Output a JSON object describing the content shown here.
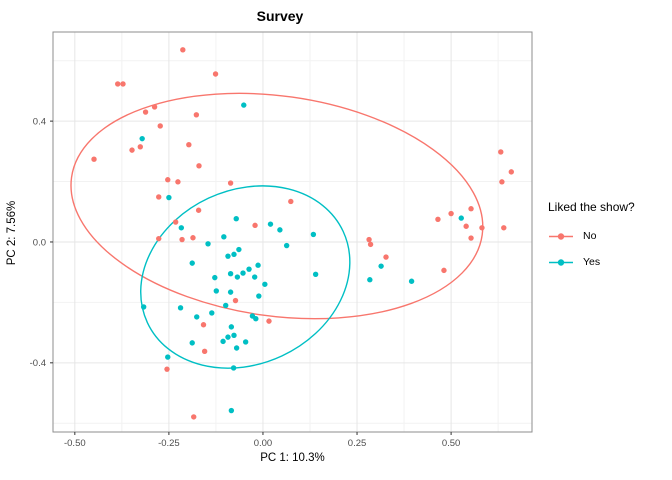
{
  "title": "Survey",
  "axes": {
    "x": {
      "label": "PC 1: 10.3%",
      "tick_labels": [
        "-0.50",
        "-0.25",
        "0.00",
        "0.25",
        "0.50"
      ],
      "tick_values": [
        -0.5,
        -0.25,
        0,
        0.25,
        0.5
      ],
      "minor_values": [
        -0.375,
        -0.125,
        0.125,
        0.375,
        0.625
      ]
    },
    "y": {
      "label": "PC 2: 7.56%",
      "tick_labels": [
        "0.4",
        "0.0",
        "-0.4"
      ],
      "tick_values": [
        0.4,
        0,
        -0.4
      ],
      "minor_values": [
        0.6,
        0.2,
        -0.2,
        -0.6
      ]
    }
  },
  "legend": {
    "title": "Liked the show?",
    "items": [
      {
        "label": "No",
        "color": "#F8766D"
      },
      {
        "label": "Yes",
        "color": "#00BFC4"
      }
    ]
  },
  "style": {
    "panel_background": "#ffffff",
    "panel_border": "#8e8e8e",
    "grid_major": "#e6e6e6",
    "grid_minor": "#f2f2f2",
    "tick_mark": "#333333",
    "tick_text": "#4d4d4d",
    "point_radius": 2.7,
    "ellipse_stroke_width": 1.4
  },
  "chart_data": {
    "type": "scatter",
    "title": "Survey",
    "xlabel": "PC 1: 10.3%",
    "ylabel": "PC 2: 7.56%",
    "xlim": [
      -0.558,
      0.715
    ],
    "ylim": [
      -0.629,
      0.695
    ],
    "grid": true,
    "legend_position": "right",
    "series": [
      {
        "name": "No",
        "color": "#F8766D",
        "points": [
          [
            -0.213,
            0.636
          ],
          [
            -0.126,
            0.556
          ],
          [
            -0.386,
            0.523
          ],
          [
            -0.372,
            0.523
          ],
          [
            -0.312,
            0.43
          ],
          [
            -0.288,
            0.447
          ],
          [
            -0.273,
            0.384
          ],
          [
            -0.177,
            0.421
          ],
          [
            -0.326,
            0.315
          ],
          [
            -0.348,
            0.304
          ],
          [
            -0.449,
            0.274
          ],
          [
            -0.197,
            0.322
          ],
          [
            -0.17,
            0.252
          ],
          [
            0.632,
            0.298
          ],
          [
            -0.253,
            0.206
          ],
          [
            -0.226,
            0.199
          ],
          [
            -0.277,
            0.149
          ],
          [
            -0.171,
            0.105
          ],
          [
            -0.232,
            0.066
          ],
          [
            -0.277,
            0.011
          ],
          [
            -0.215,
            0.008
          ],
          [
            -0.186,
            0.014
          ],
          [
            -0.086,
            0.195
          ],
          [
            0.074,
            0.134
          ],
          [
            -0.021,
            0.055
          ],
          [
            -0.073,
            -0.194
          ],
          [
            0.282,
            0.008
          ],
          [
            0.286,
            -0.008
          ],
          [
            0.66,
            0.232
          ],
          [
            0.635,
            0.199
          ],
          [
            0.553,
            0.11
          ],
          [
            0.5,
            0.094
          ],
          [
            0.465,
            0.075
          ],
          [
            0.54,
            0.052
          ],
          [
            0.582,
            0.047
          ],
          [
            0.64,
            0.047
          ],
          [
            0.553,
            0.013
          ],
          [
            0.327,
            -0.05
          ],
          [
            0.481,
            -0.094
          ],
          [
            -0.158,
            -0.274
          ],
          [
            -0.155,
            -0.362
          ],
          [
            -0.255,
            -0.421
          ],
          [
            -0.184,
            -0.579
          ],
          [
            0.016,
            -0.262
          ]
        ]
      },
      {
        "name": "Yes",
        "color": "#00BFC4",
        "points": [
          [
            -0.321,
            0.342
          ],
          [
            -0.051,
            0.453
          ],
          [
            -0.25,
            0.147
          ],
          [
            -0.217,
            0.047
          ],
          [
            -0.146,
            -0.006
          ],
          [
            -0.188,
            -0.07
          ],
          [
            -0.128,
            -0.118
          ],
          [
            -0.071,
            0.077
          ],
          [
            0.02,
            0.059
          ],
          [
            0.045,
            0.04
          ],
          [
            -0.104,
            0.017
          ],
          [
            0.134,
            0.025
          ],
          [
            0.063,
            -0.012
          ],
          [
            -0.093,
            -0.047
          ],
          [
            -0.077,
            -0.041
          ],
          [
            -0.064,
            -0.025
          ],
          [
            -0.037,
            -0.09
          ],
          [
            -0.013,
            -0.077
          ],
          [
            -0.086,
            -0.105
          ],
          [
            -0.068,
            -0.116
          ],
          [
            -0.053,
            -0.103
          ],
          [
            -0.022,
            -0.116
          ],
          [
            0.005,
            -0.14
          ],
          [
            0.14,
            -0.107
          ],
          [
            -0.086,
            -0.166
          ],
          [
            -0.124,
            -0.162
          ],
          [
            -0.011,
            -0.179
          ],
          [
            0.284,
            -0.125
          ],
          [
            0.527,
            0.079
          ],
          [
            0.314,
            -0.08
          ],
          [
            0.395,
            -0.13
          ],
          [
            -0.317,
            -0.215
          ],
          [
            -0.219,
            -0.218
          ],
          [
            -0.176,
            -0.248
          ],
          [
            -0.136,
            -0.235
          ],
          [
            -0.188,
            -0.334
          ],
          [
            -0.253,
            -0.381
          ],
          [
            -0.099,
            -0.21
          ],
          [
            -0.028,
            -0.245
          ],
          [
            -0.019,
            -0.254
          ],
          [
            -0.084,
            -0.281
          ],
          [
            -0.077,
            -0.309
          ],
          [
            -0.093,
            -0.315
          ],
          [
            -0.106,
            -0.329
          ],
          [
            -0.046,
            -0.331
          ],
          [
            -0.07,
            -0.351
          ],
          [
            -0.078,
            -0.417
          ],
          [
            -0.084,
            -0.558
          ]
        ]
      }
    ],
    "ellipses": [
      {
        "series": "No",
        "color": "#F8766D",
        "cx": 0.037,
        "cy": 0.119,
        "rx": 0.551,
        "ry": 0.364,
        "rotate_deg_screen": 8
      },
      {
        "series": "Yes",
        "color": "#00BFC4",
        "cx": -0.047,
        "cy": -0.116,
        "rx": 0.287,
        "ry": 0.288,
        "rotate_deg_screen": -25
      }
    ]
  }
}
